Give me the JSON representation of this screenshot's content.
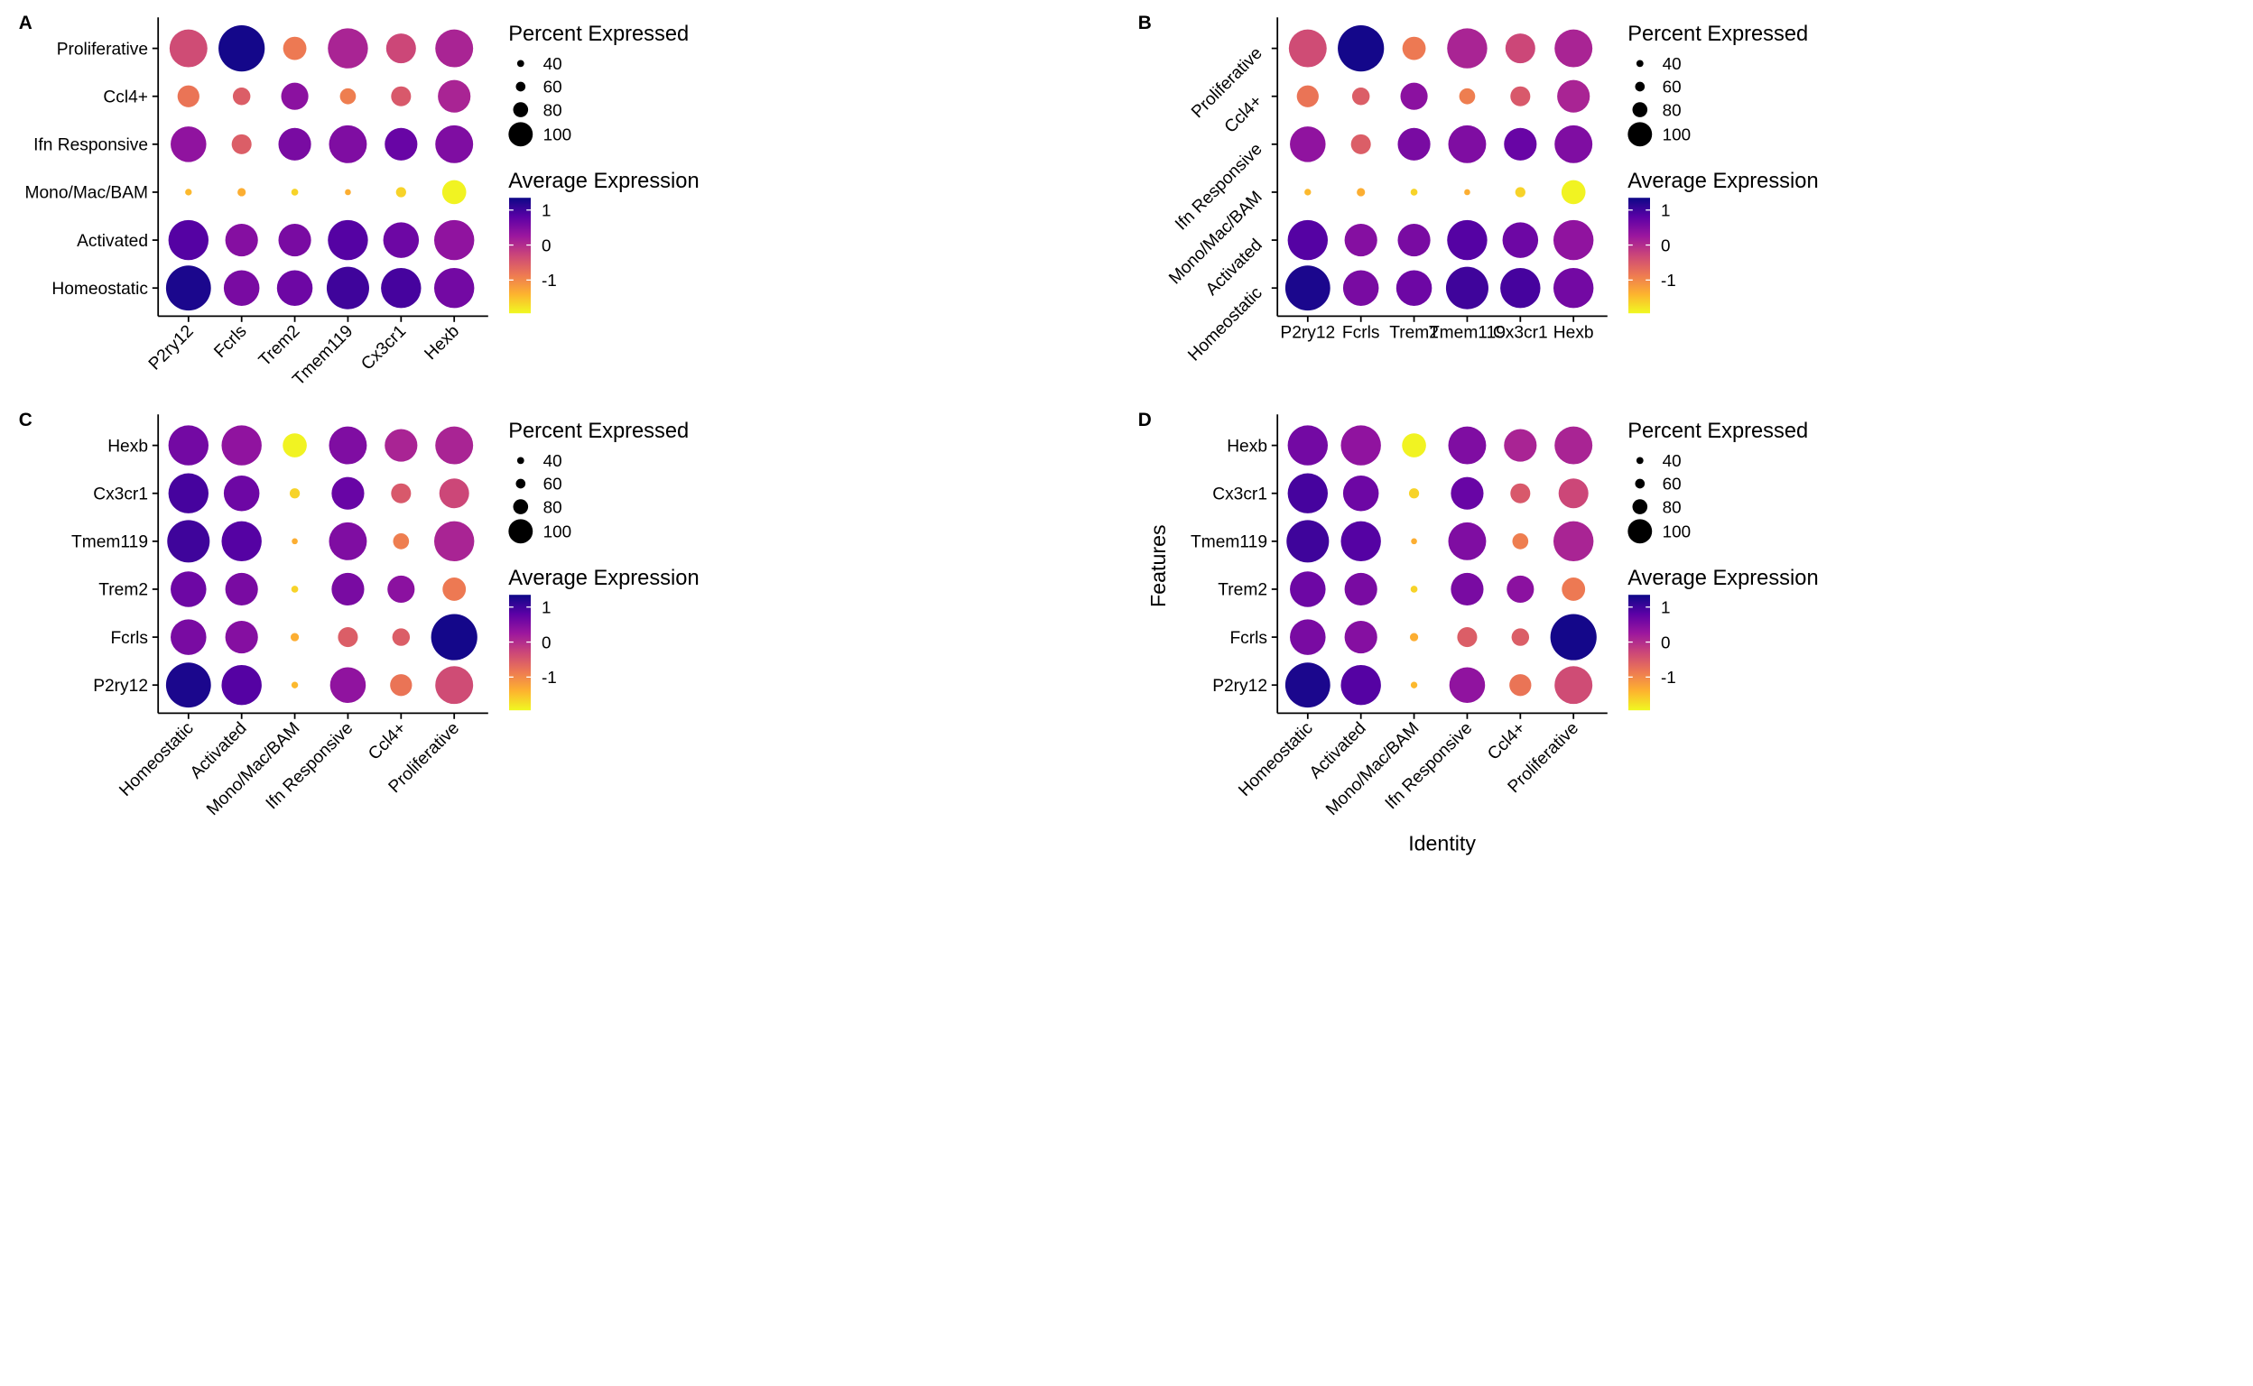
{
  "chart_data": [
    {
      "type": "scatter",
      "panel": "A",
      "xlabel": "",
      "ylabel": "",
      "x_categories": [
        "P2ry12",
        "Fcrls",
        "Trem2",
        "Tmem119",
        "Cx3cr1",
        "Hexb"
      ],
      "y_categories": [
        "Homeostatic",
        "Activated",
        "Mono/Mac/BAM",
        "Ifn Responsive",
        "Ccl4+",
        "Proliferative"
      ],
      "x_label_rotation": 45,
      "y_label_rotation": 0,
      "show_axis_titles": false
    },
    {
      "type": "scatter",
      "panel": "B",
      "xlabel": "",
      "ylabel": "",
      "x_categories": [
        "P2ry12",
        "Fcrls",
        "Trem2",
        "Tmem119",
        "Cx3cr1",
        "Hexb"
      ],
      "y_categories": [
        "Homeostatic",
        "Activated",
        "Mono/Mac/BAM",
        "Ifn Responsive",
        "Ccl4+",
        "Proliferative"
      ],
      "x_label_rotation": 0,
      "y_label_rotation": 45,
      "show_axis_titles": false
    },
    {
      "type": "scatter",
      "panel": "C",
      "xlabel": "",
      "ylabel": "",
      "x_categories": [
        "Homeostatic",
        "Activated",
        "Mono/Mac/BAM",
        "Ifn Responsive",
        "Ccl4+",
        "Proliferative"
      ],
      "y_categories": [
        "P2ry12",
        "Fcrls",
        "Trem2",
        "Tmem119",
        "Cx3cr1",
        "Hexb"
      ],
      "x_label_rotation": 45,
      "y_label_rotation": 0,
      "show_axis_titles": false
    },
    {
      "type": "scatter",
      "panel": "D",
      "xlabel": "Identity",
      "ylabel": "Features",
      "x_categories": [
        "Homeostatic",
        "Activated",
        "Mono/Mac/BAM",
        "Ifn Responsive",
        "Ccl4+",
        "Proliferative"
      ],
      "y_categories": [
        "P2ry12",
        "Fcrls",
        "Trem2",
        "Tmem119",
        "Cx3cr1",
        "Hexb"
      ],
      "x_label_rotation": 45,
      "y_label_rotation": 0,
      "show_axis_titles": true
    }
  ],
  "expression": {
    "genes": [
      "P2ry12",
      "Fcrls",
      "Trem2",
      "Tmem119",
      "Cx3cr1",
      "Hexb"
    ],
    "clusters": [
      "Homeostatic",
      "Activated",
      "Mono/Mac/BAM",
      "Ifn Responsive",
      "Ccl4+",
      "Proliferative"
    ],
    "percent_expressed": {
      "Homeostatic": [
        99,
        91,
        91,
        97,
        95,
        95
      ],
      "Activated": [
        95,
        88,
        88,
        95,
        91,
        95
      ],
      "Mono/Mac/BAM": [
        30,
        42,
        33,
        20,
        50,
        78
      ],
      "Ifn Responsive": [
        91,
        72,
        88,
        93,
        88,
        93
      ],
      "Ccl4+": [
        75,
        68,
        82,
        65,
        72,
        88
      ],
      "Proliferative": [
        93,
        100,
        77,
        95,
        85,
        93
      ]
    },
    "average_expression": {
      "Homeostatic": [
        1.25,
        0.55,
        0.65,
        1.0,
        0.95,
        0.6
      ],
      "Activated": [
        0.85,
        0.45,
        0.55,
        0.85,
        0.65,
        0.35
      ],
      "Mono/Mac/BAM": [
        -1.45,
        -1.35,
        -1.65,
        -1.35,
        -1.65,
        -1.9
      ],
      "Ifn Responsive": [
        0.35,
        -0.55,
        0.55,
        0.5,
        0.7,
        0.5
      ],
      "Ccl4+": [
        -0.8,
        -0.55,
        0.4,
        -0.9,
        -0.5,
        0.1
      ],
      "Proliferative": [
        -0.35,
        1.3,
        -0.85,
        0.1,
        -0.3,
        0.1
      ]
    }
  },
  "legend": {
    "size_title": "Percent Expressed",
    "size_breaks": [
      40,
      60,
      80,
      100
    ],
    "size_labels": [
      "40",
      "60",
      "80",
      "100"
    ],
    "color_title": "Average Expression",
    "color_breaks": [
      1,
      0,
      -1
    ],
    "color_labels": [
      "1",
      "0",
      "-1"
    ],
    "color_range": [
      -1.95,
      1.35
    ],
    "color_stops": [
      "#F0F921",
      "#FDB32F",
      "#ED7953",
      "#CC4778",
      "#9C179E",
      "#5C01A6",
      "#0D0887"
    ]
  }
}
